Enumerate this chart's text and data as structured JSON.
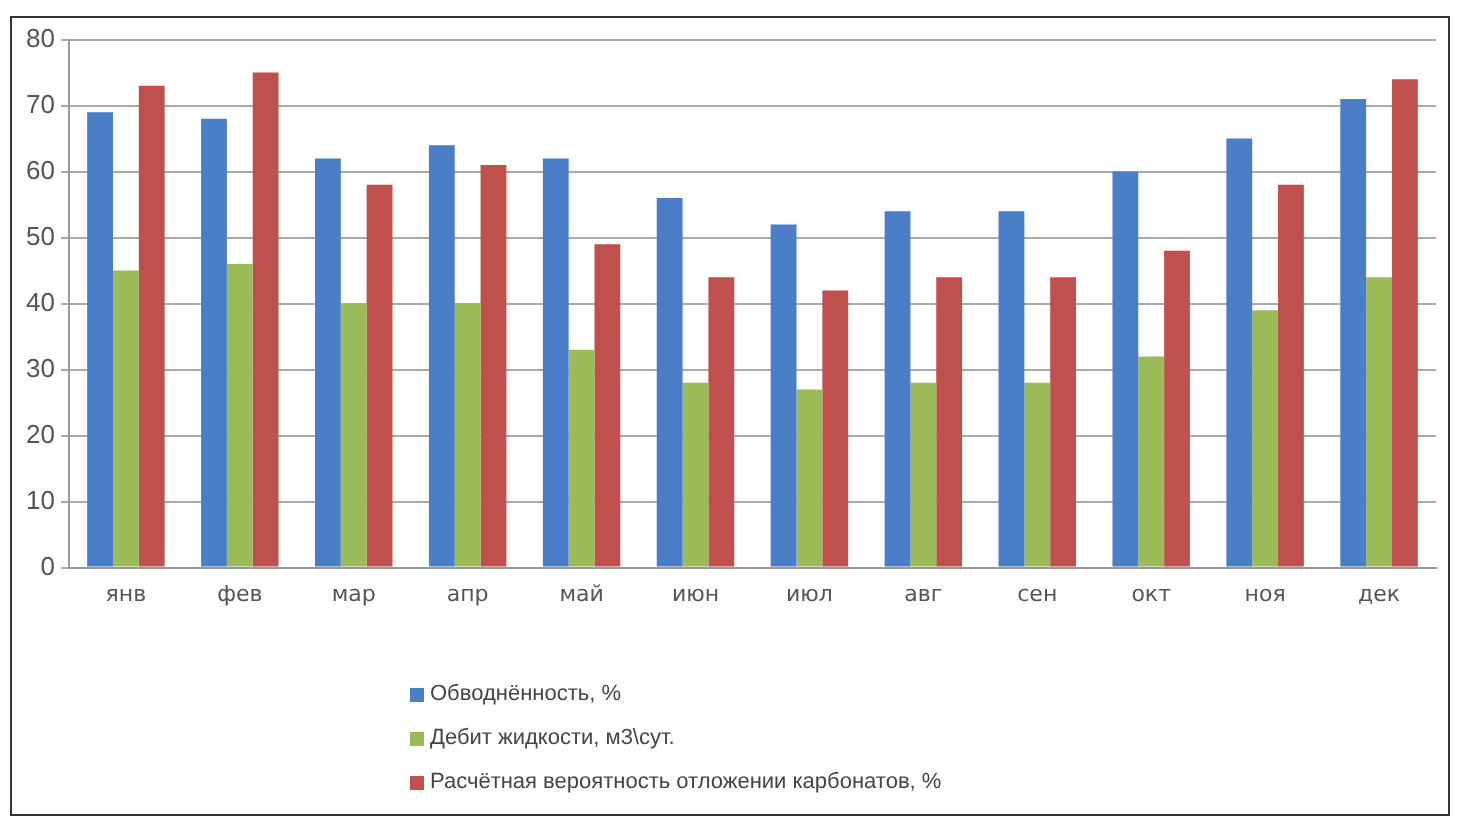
{
  "chart_data": {
    "type": "bar",
    "categories": [
      "янв",
      "фев",
      "мар",
      "апр",
      "май",
      "июн",
      "июл",
      "авг",
      "сен",
      "окт",
      "ноя",
      "дек"
    ],
    "series": [
      {
        "name": "Обводнённость, %",
        "color": "#4a7ec6",
        "values": [
          69,
          68,
          62,
          64,
          62,
          56,
          52,
          54,
          54,
          60,
          65,
          71
        ]
      },
      {
        "name": "Дебит жидкости, м3\\сут.",
        "color": "#9bbb59",
        "values": [
          45,
          46,
          40,
          40,
          33,
          28,
          27,
          28,
          28,
          32,
          39,
          44
        ]
      },
      {
        "name": "Расчётная вероятность отложении карбонатов, %",
        "color": "#c0504d",
        "values": [
          73,
          75,
          58,
          61,
          49,
          44,
          42,
          44,
          44,
          48,
          58,
          74
        ]
      }
    ],
    "ylim": [
      0,
      80
    ],
    "yticks": [
      0,
      10,
      20,
      30,
      40,
      50,
      60,
      70,
      80
    ],
    "grid": "y",
    "legend": "bottom"
  }
}
